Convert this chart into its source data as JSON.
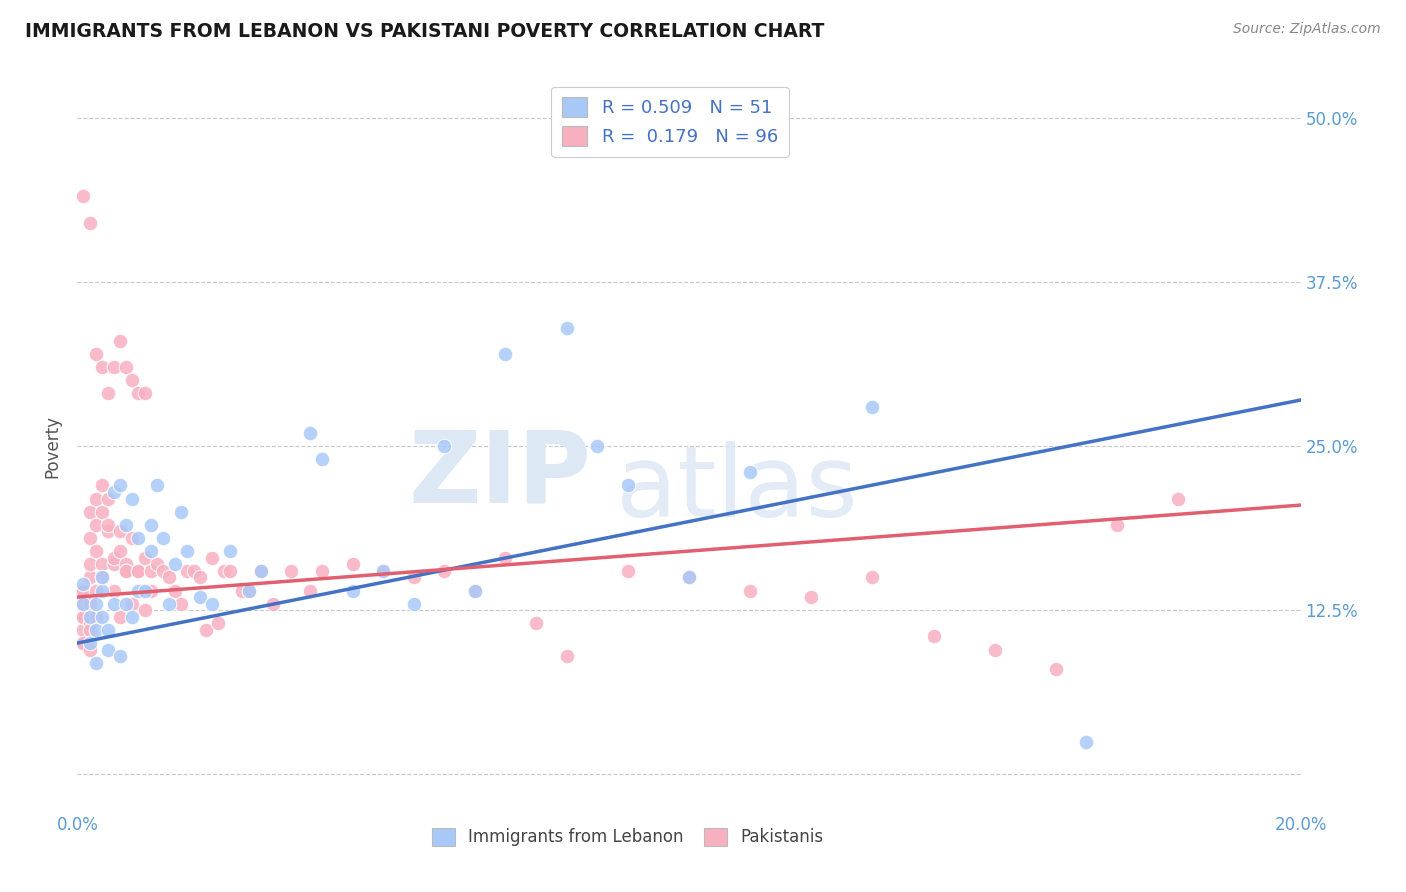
{
  "title": "IMMIGRANTS FROM LEBANON VS PAKISTANI POVERTY CORRELATION CHART",
  "source": "Source: ZipAtlas.com",
  "ylabel": "Poverty",
  "yticks": [
    0.0,
    0.125,
    0.25,
    0.375,
    0.5
  ],
  "ytick_labels": [
    "",
    "12.5%",
    "25.0%",
    "37.5%",
    "50.0%"
  ],
  "blue_color": "#a8c8f8",
  "pink_color": "#f8b0c0",
  "blue_line_color": "#4472c4",
  "pink_line_color": "#e06070",
  "background_color": "#ffffff",
  "grid_color": "#c8c8c8",
  "title_color": "#1a1a1a",
  "axis_label_color": "#5b9bd5",
  "xlim": [
    0.0,
    0.2
  ],
  "ylim": [
    -0.025,
    0.525
  ],
  "blue_scatter_x": [
    0.001,
    0.001,
    0.002,
    0.002,
    0.003,
    0.003,
    0.003,
    0.004,
    0.004,
    0.004,
    0.005,
    0.005,
    0.006,
    0.006,
    0.007,
    0.007,
    0.008,
    0.008,
    0.009,
    0.009,
    0.01,
    0.01,
    0.011,
    0.012,
    0.012,
    0.013,
    0.014,
    0.015,
    0.016,
    0.017,
    0.018,
    0.02,
    0.022,
    0.025,
    0.028,
    0.03,
    0.038,
    0.04,
    0.045,
    0.05,
    0.055,
    0.06,
    0.065,
    0.07,
    0.08,
    0.085,
    0.09,
    0.1,
    0.11,
    0.13,
    0.165
  ],
  "blue_scatter_y": [
    0.13,
    0.145,
    0.12,
    0.1,
    0.11,
    0.085,
    0.13,
    0.14,
    0.12,
    0.15,
    0.095,
    0.11,
    0.13,
    0.215,
    0.22,
    0.09,
    0.19,
    0.13,
    0.12,
    0.21,
    0.14,
    0.18,
    0.14,
    0.17,
    0.19,
    0.22,
    0.18,
    0.13,
    0.16,
    0.2,
    0.17,
    0.135,
    0.13,
    0.17,
    0.14,
    0.155,
    0.26,
    0.24,
    0.14,
    0.155,
    0.13,
    0.25,
    0.14,
    0.32,
    0.34,
    0.25,
    0.22,
    0.15,
    0.23,
    0.28,
    0.025
  ],
  "pink_scatter_x": [
    0.001,
    0.001,
    0.001,
    0.001,
    0.001,
    0.001,
    0.001,
    0.001,
    0.001,
    0.001,
    0.002,
    0.002,
    0.002,
    0.002,
    0.002,
    0.002,
    0.002,
    0.002,
    0.003,
    0.003,
    0.003,
    0.003,
    0.003,
    0.004,
    0.004,
    0.004,
    0.004,
    0.005,
    0.005,
    0.005,
    0.006,
    0.006,
    0.006,
    0.007,
    0.007,
    0.007,
    0.008,
    0.008,
    0.008,
    0.009,
    0.009,
    0.01,
    0.01,
    0.011,
    0.011,
    0.012,
    0.012,
    0.013,
    0.014,
    0.015,
    0.016,
    0.017,
    0.018,
    0.019,
    0.02,
    0.021,
    0.022,
    0.023,
    0.024,
    0.025,
    0.027,
    0.028,
    0.03,
    0.032,
    0.035,
    0.038,
    0.04,
    0.045,
    0.05,
    0.055,
    0.06,
    0.065,
    0.07,
    0.075,
    0.08,
    0.09,
    0.1,
    0.11,
    0.12,
    0.13,
    0.14,
    0.15,
    0.16,
    0.17,
    0.18,
    0.001,
    0.002,
    0.003,
    0.004,
    0.005,
    0.006,
    0.007,
    0.008,
    0.009,
    0.01,
    0.011
  ],
  "pink_scatter_y": [
    0.13,
    0.14,
    0.12,
    0.1,
    0.135,
    0.11,
    0.13,
    0.12,
    0.14,
    0.1,
    0.095,
    0.13,
    0.115,
    0.11,
    0.18,
    0.15,
    0.2,
    0.16,
    0.12,
    0.14,
    0.19,
    0.21,
    0.17,
    0.15,
    0.2,
    0.22,
    0.16,
    0.185,
    0.19,
    0.21,
    0.16,
    0.165,
    0.14,
    0.185,
    0.17,
    0.12,
    0.16,
    0.155,
    0.155,
    0.18,
    0.13,
    0.155,
    0.155,
    0.165,
    0.125,
    0.14,
    0.155,
    0.16,
    0.155,
    0.15,
    0.14,
    0.13,
    0.155,
    0.155,
    0.15,
    0.11,
    0.165,
    0.115,
    0.155,
    0.155,
    0.14,
    0.14,
    0.155,
    0.13,
    0.155,
    0.14,
    0.155,
    0.16,
    0.155,
    0.15,
    0.155,
    0.14,
    0.165,
    0.115,
    0.09,
    0.155,
    0.15,
    0.14,
    0.135,
    0.15,
    0.105,
    0.095,
    0.08,
    0.19,
    0.21,
    0.44,
    0.42,
    0.32,
    0.31,
    0.29,
    0.31,
    0.33,
    0.31,
    0.3,
    0.29,
    0.29
  ]
}
